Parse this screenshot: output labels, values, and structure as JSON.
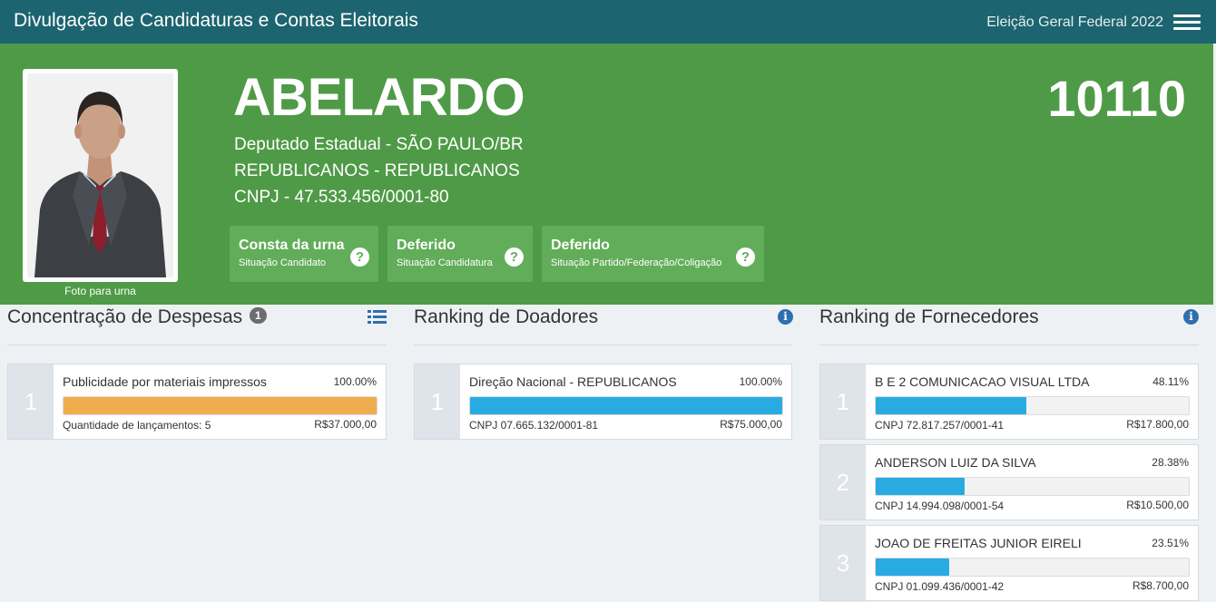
{
  "header": {
    "title": "Divulgação de Candidaturas e Contas Eleitorais",
    "election": "Eleição Geral Federal 2022",
    "menu_icon": "hamburger-menu-icon"
  },
  "candidate": {
    "name": "ABELARDO",
    "number": "10110",
    "office": "Deputado Estadual - SÃO PAULO/BR",
    "party": "REPUBLICANOS - REPUBLICANOS",
    "cnpj": "CNPJ - 47.533.456/0001-80",
    "photo_caption": "Foto para urna",
    "statuses": [
      {
        "main": "Consta da urna",
        "sub": "Situação Candidato",
        "icon": "?"
      },
      {
        "main": "Deferido",
        "sub": "Situação Candidatura",
        "icon": "?"
      },
      {
        "main": "Deferido",
        "sub": "Situação Partido/Federação/Coligação",
        "icon": "?"
      }
    ]
  },
  "colors": {
    "topbar": "#1c6470",
    "hero": "#4f9a47",
    "status_box": "#62ad59",
    "expense_bar": "#f0ad4e",
    "ranking_bar": "#29abe2"
  },
  "despesas": {
    "title": "Concentração de Despesas",
    "badge": "1",
    "icon": "list-icon",
    "items": [
      {
        "rank": "1",
        "name": "Publicidade por materiais impressos",
        "percent": "100.00%",
        "fill": 1.0,
        "left": "Quantidade de lançamentos: 5",
        "value": "R$37.000,00"
      }
    ]
  },
  "doadores": {
    "title": "Ranking de Doadores",
    "icon": "info-icon",
    "items": [
      {
        "rank": "1",
        "name": "Direção Nacional - REPUBLICANOS",
        "percent": "100.00%",
        "fill": 1.0,
        "left": "CNPJ 07.665.132/0001-81",
        "value": "R$75.000,00"
      }
    ]
  },
  "fornecedores": {
    "title": "Ranking de Fornecedores",
    "icon": "info-icon",
    "items": [
      {
        "rank": "1",
        "name": "B E 2 COMUNICACAO VISUAL LTDA",
        "percent": "48.11%",
        "fill": 0.4811,
        "left": "CNPJ 72.817.257/0001-41",
        "value": "R$17.800,00"
      },
      {
        "rank": "2",
        "name": "ANDERSON LUIZ DA SILVA",
        "percent": "28.38%",
        "fill": 0.2838,
        "left": "CNPJ 14.994.098/0001-54",
        "value": "R$10.500,00"
      },
      {
        "rank": "3",
        "name": "JOAO DE FREITAS JUNIOR EIRELI",
        "percent": "23.51%",
        "fill": 0.2351,
        "left": "CNPJ 01.099.436/0001-42",
        "value": "R$8.700,00"
      }
    ]
  }
}
